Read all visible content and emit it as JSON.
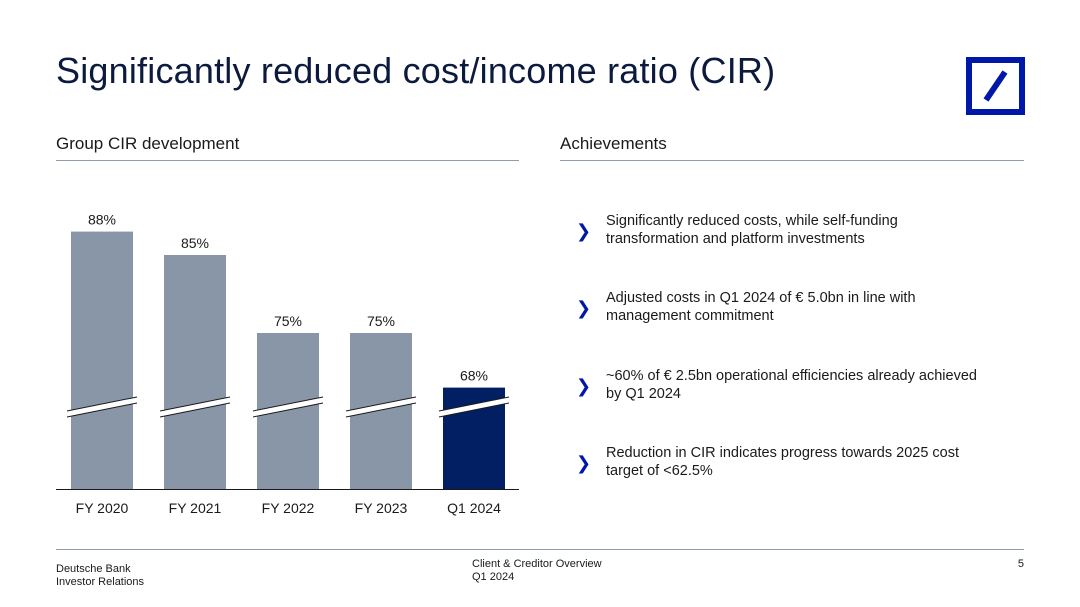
{
  "slide": {
    "title": "Significantly reduced cost/income ratio (CIR)",
    "left_heading": "Group CIR development",
    "right_heading": "Achievements",
    "brand_color": "#0018a8"
  },
  "chart_data": {
    "type": "bar",
    "categories": [
      "FY 2020",
      "FY 2021",
      "FY 2022",
      "FY 2023",
      "Q1 2024"
    ],
    "values": [
      88,
      85,
      75,
      75,
      68
    ],
    "value_labels": [
      "88%",
      "85%",
      "75%",
      "75%",
      "68%"
    ],
    "colors": [
      "#8896a8",
      "#8896a8",
      "#8896a8",
      "#8896a8",
      "#011f62"
    ],
    "axis_break": true,
    "grid": false,
    "ylim": [
      55,
      90
    ]
  },
  "achievements": [
    {
      "icon": "chevron-right-icon",
      "text_lines": [
        "Significantly reduced costs, while self-funding",
        "transformation and platform investments"
      ]
    },
    {
      "icon": "chevron-right-icon",
      "text_lines": [
        "Adjusted costs in Q1 2024 of € 5.0bn in line with",
        "management commitment"
      ]
    },
    {
      "icon": "chevron-right-icon",
      "text_lines": [
        "~60% of € 2.5bn operational efficiencies already achieved",
        "by Q1 2024"
      ]
    },
    {
      "icon": "chevron-right-icon",
      "text_lines": [
        "Reduction in CIR indicates progress towards 2025 cost",
        "target of <62.5%"
      ]
    }
  ],
  "chevron_glyph": "❯",
  "footer": {
    "org_line1": "Deutsche Bank",
    "org_line2": "Investor Relations",
    "doc_line1": "Client & Creditor Overview",
    "doc_line2": "Q1 2024",
    "page": "5"
  }
}
